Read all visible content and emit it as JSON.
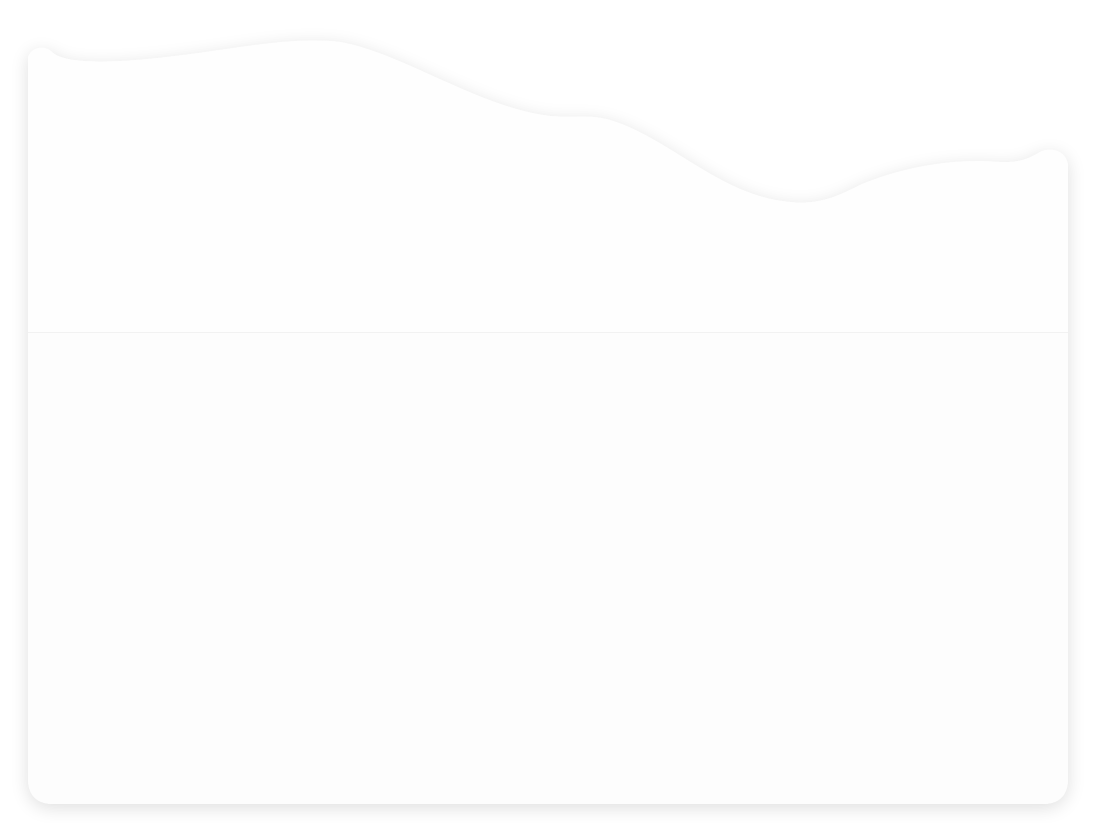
{
  "theme": {
    "page_background": "#ffffff",
    "card_fill": "#fefefe",
    "card_lower_fill": "#fdfdfd",
    "divider_color": "#f2f2f2",
    "shadow_color": "#000000"
  },
  "card": {
    "description_shown": false
  }
}
